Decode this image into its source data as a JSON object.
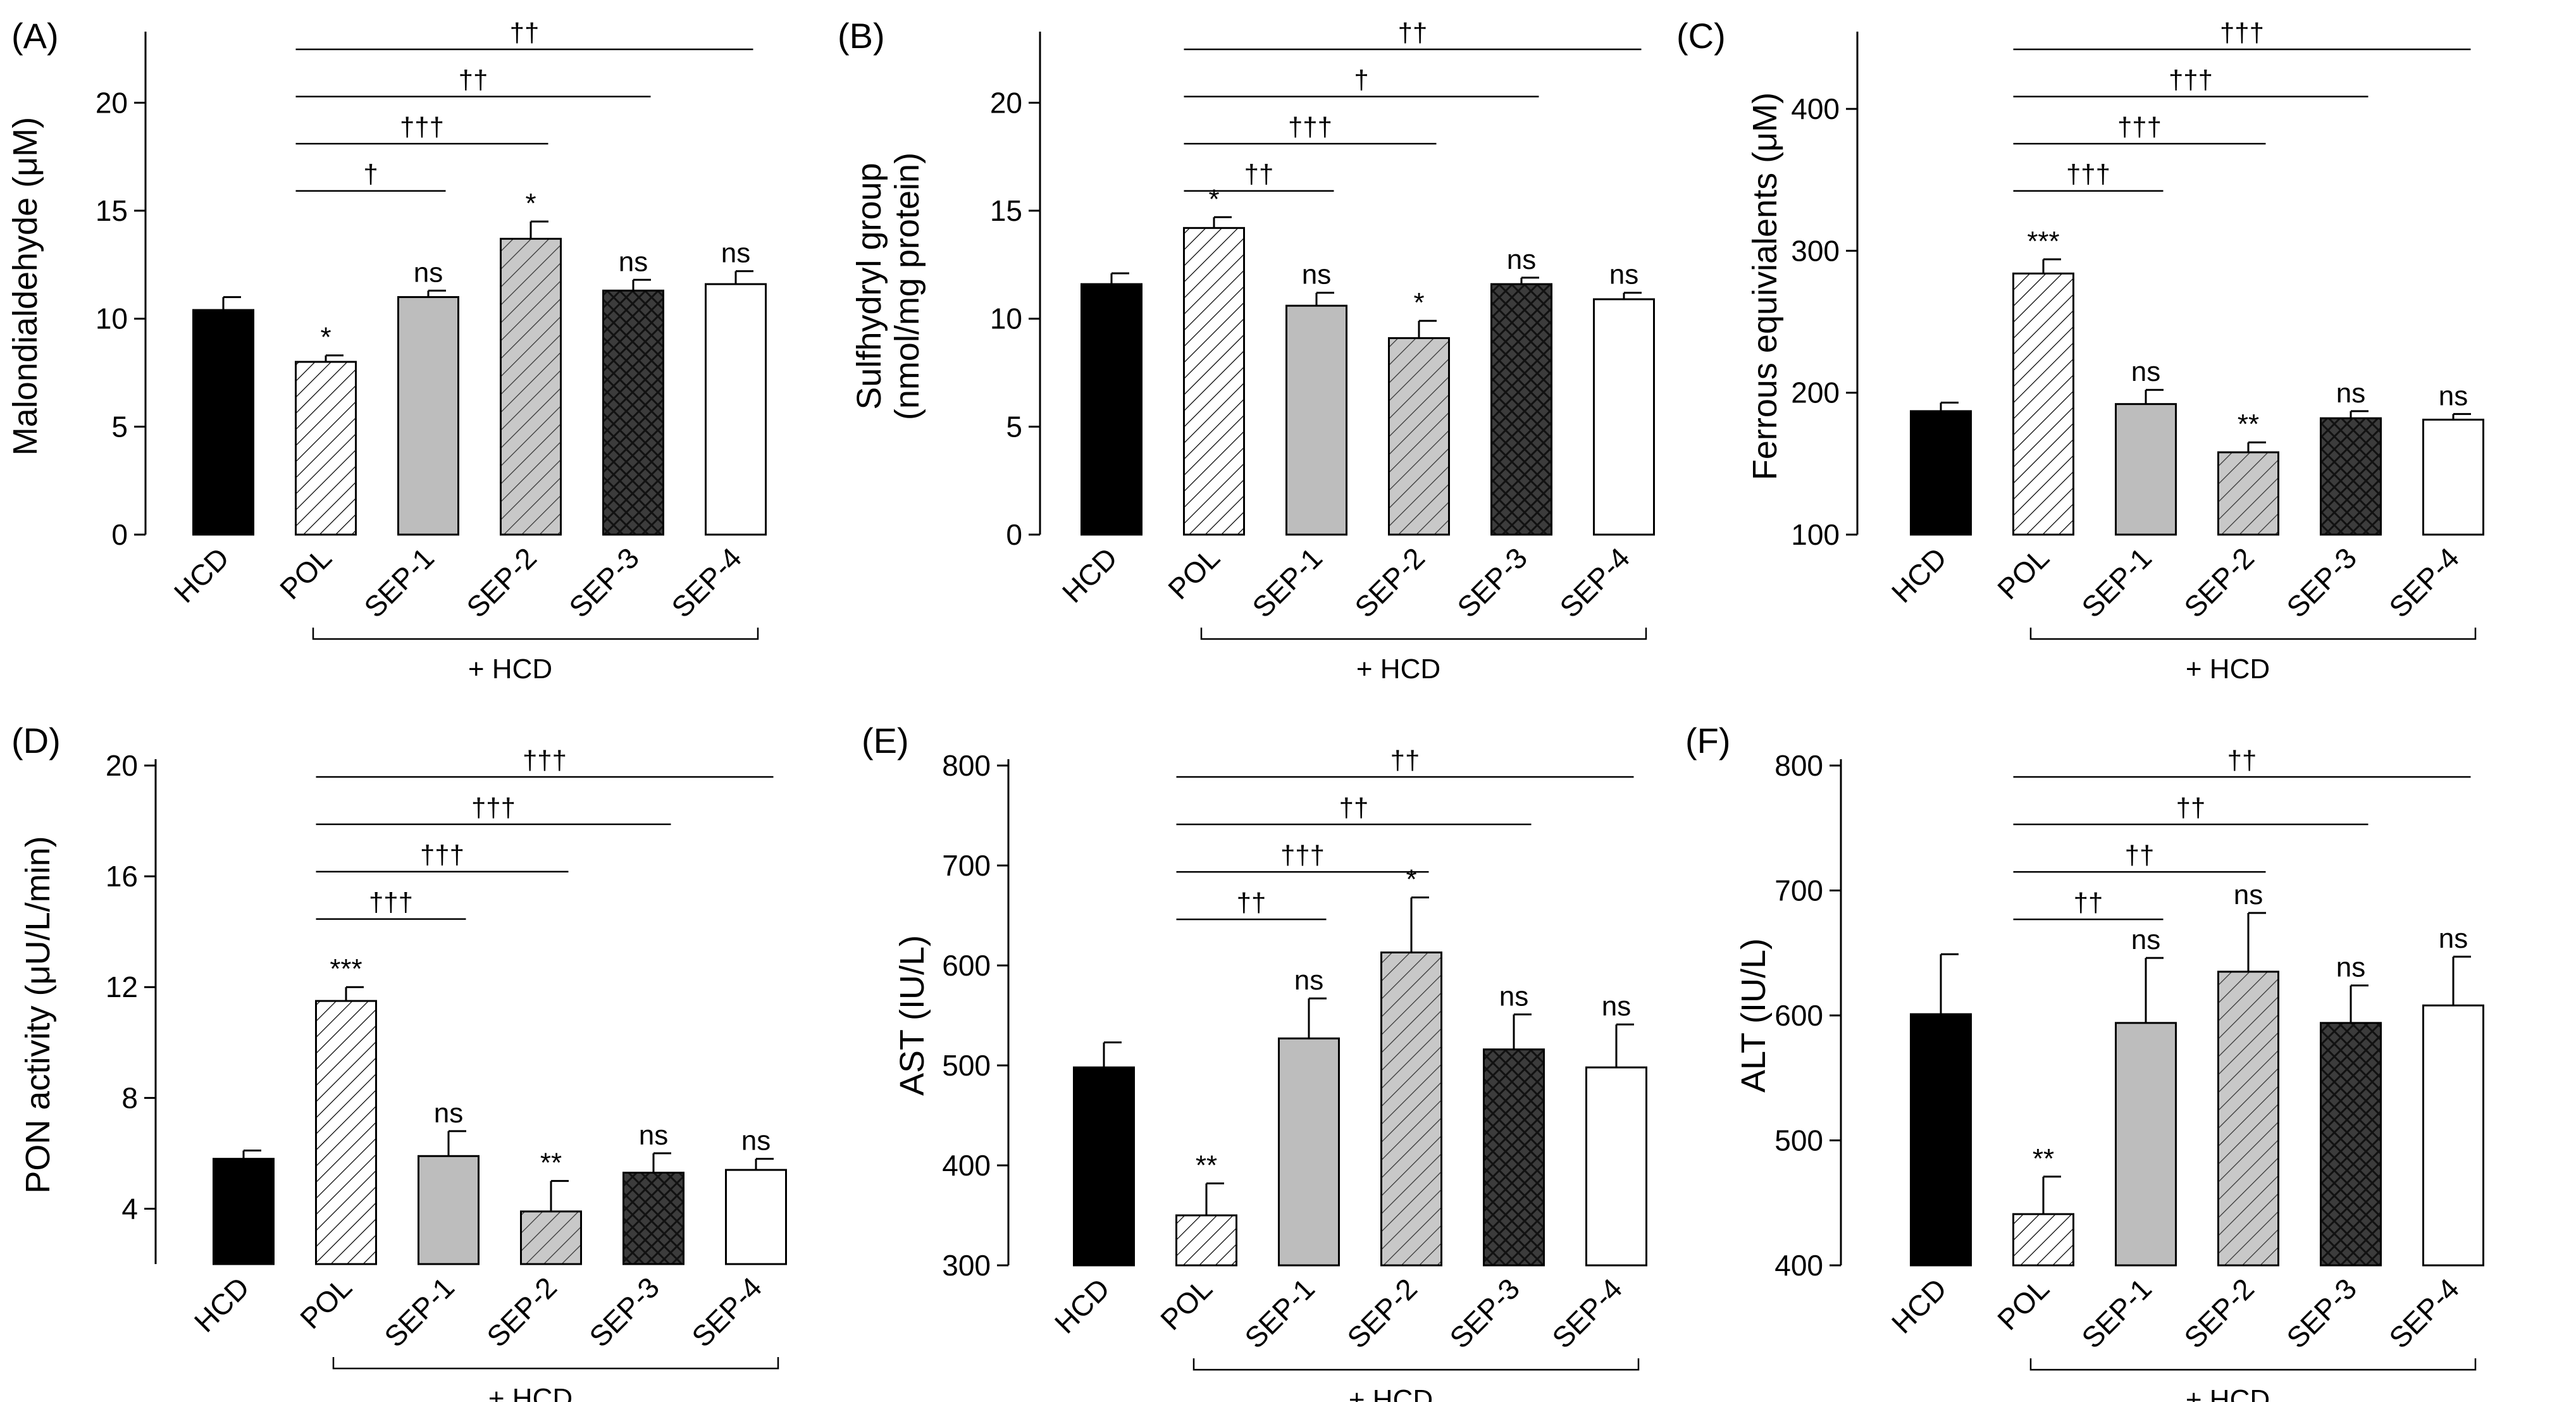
{
  "figure": {
    "group_label": "+ HCD",
    "categories": [
      "HCD",
      "POL",
      "SEP-1",
      "SEP-2",
      "SEP-3",
      "SEP-4"
    ],
    "bar_styles": [
      "solid-black",
      "hatch-diagonal-white",
      "solid-light-gray",
      "hatch-diagonal-gray",
      "crosshatch-dark-gray",
      "solid-white"
    ]
  },
  "chart_data": [
    {
      "panel": "(A)",
      "type": "bar",
      "ylabel": "Malondialdehyde (μM)",
      "ylim": [
        0,
        23
      ],
      "ticks": [
        0,
        5,
        10,
        15,
        20
      ],
      "categories": [
        "HCD",
        "POL",
        "SEP-1",
        "SEP-2",
        "SEP-3",
        "SEP-4"
      ],
      "values": [
        10.4,
        8.0,
        11.0,
        13.7,
        11.3,
        11.6
      ],
      "errors": [
        0.6,
        0.3,
        0.3,
        0.8,
        0.5,
        0.6
      ],
      "significance": [
        "",
        "*",
        "ns",
        "*",
        "ns",
        "ns"
      ],
      "comparisons": [
        {
          "from": 1,
          "to": 2,
          "label": "†"
        },
        {
          "from": 1,
          "to": 3,
          "label": "†††"
        },
        {
          "from": 1,
          "to": 4,
          "label": "††"
        },
        {
          "from": 1,
          "to": 5,
          "label": "††"
        }
      ],
      "group_label": "+ HCD"
    },
    {
      "panel": "(B)",
      "type": "bar",
      "ylabel": "Sulfhydryl group",
      "ylabel2": "(nmol/mg protein)",
      "ylim": [
        0,
        23
      ],
      "ticks": [
        0,
        5,
        10,
        15,
        20
      ],
      "categories": [
        "HCD",
        "POL",
        "SEP-1",
        "SEP-2",
        "SEP-3",
        "SEP-4"
      ],
      "values": [
        11.6,
        14.2,
        10.6,
        9.1,
        11.6,
        10.9
      ],
      "errors": [
        0.5,
        0.5,
        0.6,
        0.8,
        0.3,
        0.3
      ],
      "significance": [
        "",
        "*",
        "ns",
        "*",
        "ns",
        "ns"
      ],
      "comparisons": [
        {
          "from": 1,
          "to": 2,
          "label": "††"
        },
        {
          "from": 1,
          "to": 3,
          "label": "†††"
        },
        {
          "from": 1,
          "to": 4,
          "label": "†"
        },
        {
          "from": 1,
          "to": 5,
          "label": "††"
        }
      ],
      "group_label": "+ HCD"
    },
    {
      "panel": "(C)",
      "type": "bar",
      "ylabel": "Ferrous equivialents (μM)",
      "ylim": [
        100,
        450
      ],
      "ticks": [
        100,
        200,
        300,
        400
      ],
      "categories": [
        "HCD",
        "POL",
        "SEP-1",
        "SEP-2",
        "SEP-3",
        "SEP-4"
      ],
      "values": [
        187,
        284,
        192,
        158,
        182,
        181
      ],
      "errors": [
        6,
        10,
        10,
        7,
        5,
        4
      ],
      "significance": [
        "",
        "***",
        "ns",
        "**",
        "ns",
        "ns"
      ],
      "comparisons": [
        {
          "from": 1,
          "to": 2,
          "label": "†††"
        },
        {
          "from": 1,
          "to": 3,
          "label": "†††"
        },
        {
          "from": 1,
          "to": 4,
          "label": "†††"
        },
        {
          "from": 1,
          "to": 5,
          "label": "†††"
        }
      ],
      "group_label": "+ HCD"
    },
    {
      "panel": "(D)",
      "type": "bar",
      "ylabel": "PON activity (μU/L/min)",
      "ylim": [
        2,
        20
      ],
      "ticks": [
        4,
        8,
        12,
        16,
        20
      ],
      "categories": [
        "HCD",
        "POL",
        "SEP-1",
        "SEP-2",
        "SEP-3",
        "SEP-4"
      ],
      "values": [
        5.8,
        11.5,
        5.9,
        3.9,
        5.3,
        5.4
      ],
      "errors": [
        0.3,
        0.5,
        0.9,
        1.1,
        0.7,
        0.4
      ],
      "significance": [
        "",
        "***",
        "ns",
        "**",
        "ns",
        "ns"
      ],
      "comparisons": [
        {
          "from": 1,
          "to": 2,
          "label": "†††"
        },
        {
          "from": 1,
          "to": 3,
          "label": "†††"
        },
        {
          "from": 1,
          "to": 4,
          "label": "†††"
        },
        {
          "from": 1,
          "to": 5,
          "label": "†††"
        }
      ],
      "group_label": "+ HCD"
    },
    {
      "panel": "(E)",
      "type": "bar",
      "ylabel": "AST (IU/L)",
      "ylim": [
        300,
        800
      ],
      "ticks": [
        300,
        400,
        500,
        600,
        700,
        800
      ],
      "categories": [
        "HCD",
        "POL",
        "SEP-1",
        "SEP-2",
        "SEP-3",
        "SEP-4"
      ],
      "values": [
        498,
        350,
        527,
        613,
        516,
        498
      ],
      "errors": [
        25,
        32,
        40,
        55,
        35,
        43
      ],
      "significance": [
        "",
        "**",
        "ns",
        "*",
        "ns",
        "ns"
      ],
      "comparisons": [
        {
          "from": 1,
          "to": 2,
          "label": "††"
        },
        {
          "from": 1,
          "to": 3,
          "label": "†††"
        },
        {
          "from": 1,
          "to": 4,
          "label": "††"
        },
        {
          "from": 1,
          "to": 5,
          "label": "††"
        }
      ],
      "group_label": "+ HCD"
    },
    {
      "panel": "(F)",
      "type": "bar",
      "ylabel": "ALT (IU/L)",
      "ylim": [
        400,
        800
      ],
      "ticks": [
        400,
        500,
        600,
        700,
        800
      ],
      "categories": [
        "HCD",
        "POL",
        "SEP-1",
        "SEP-2",
        "SEP-3",
        "SEP-4"
      ],
      "values": [
        601,
        441,
        594,
        635,
        594,
        608
      ],
      "errors": [
        48,
        30,
        52,
        47,
        30,
        39
      ],
      "significance": [
        "",
        "**",
        "ns",
        "ns",
        "ns",
        "ns"
      ],
      "comparisons": [
        {
          "from": 1,
          "to": 2,
          "label": "††"
        },
        {
          "from": 1,
          "to": 3,
          "label": "††"
        },
        {
          "from": 1,
          "to": 4,
          "label": "††"
        },
        {
          "from": 1,
          "to": 5,
          "label": "††"
        }
      ],
      "group_label": "+ HCD"
    }
  ]
}
